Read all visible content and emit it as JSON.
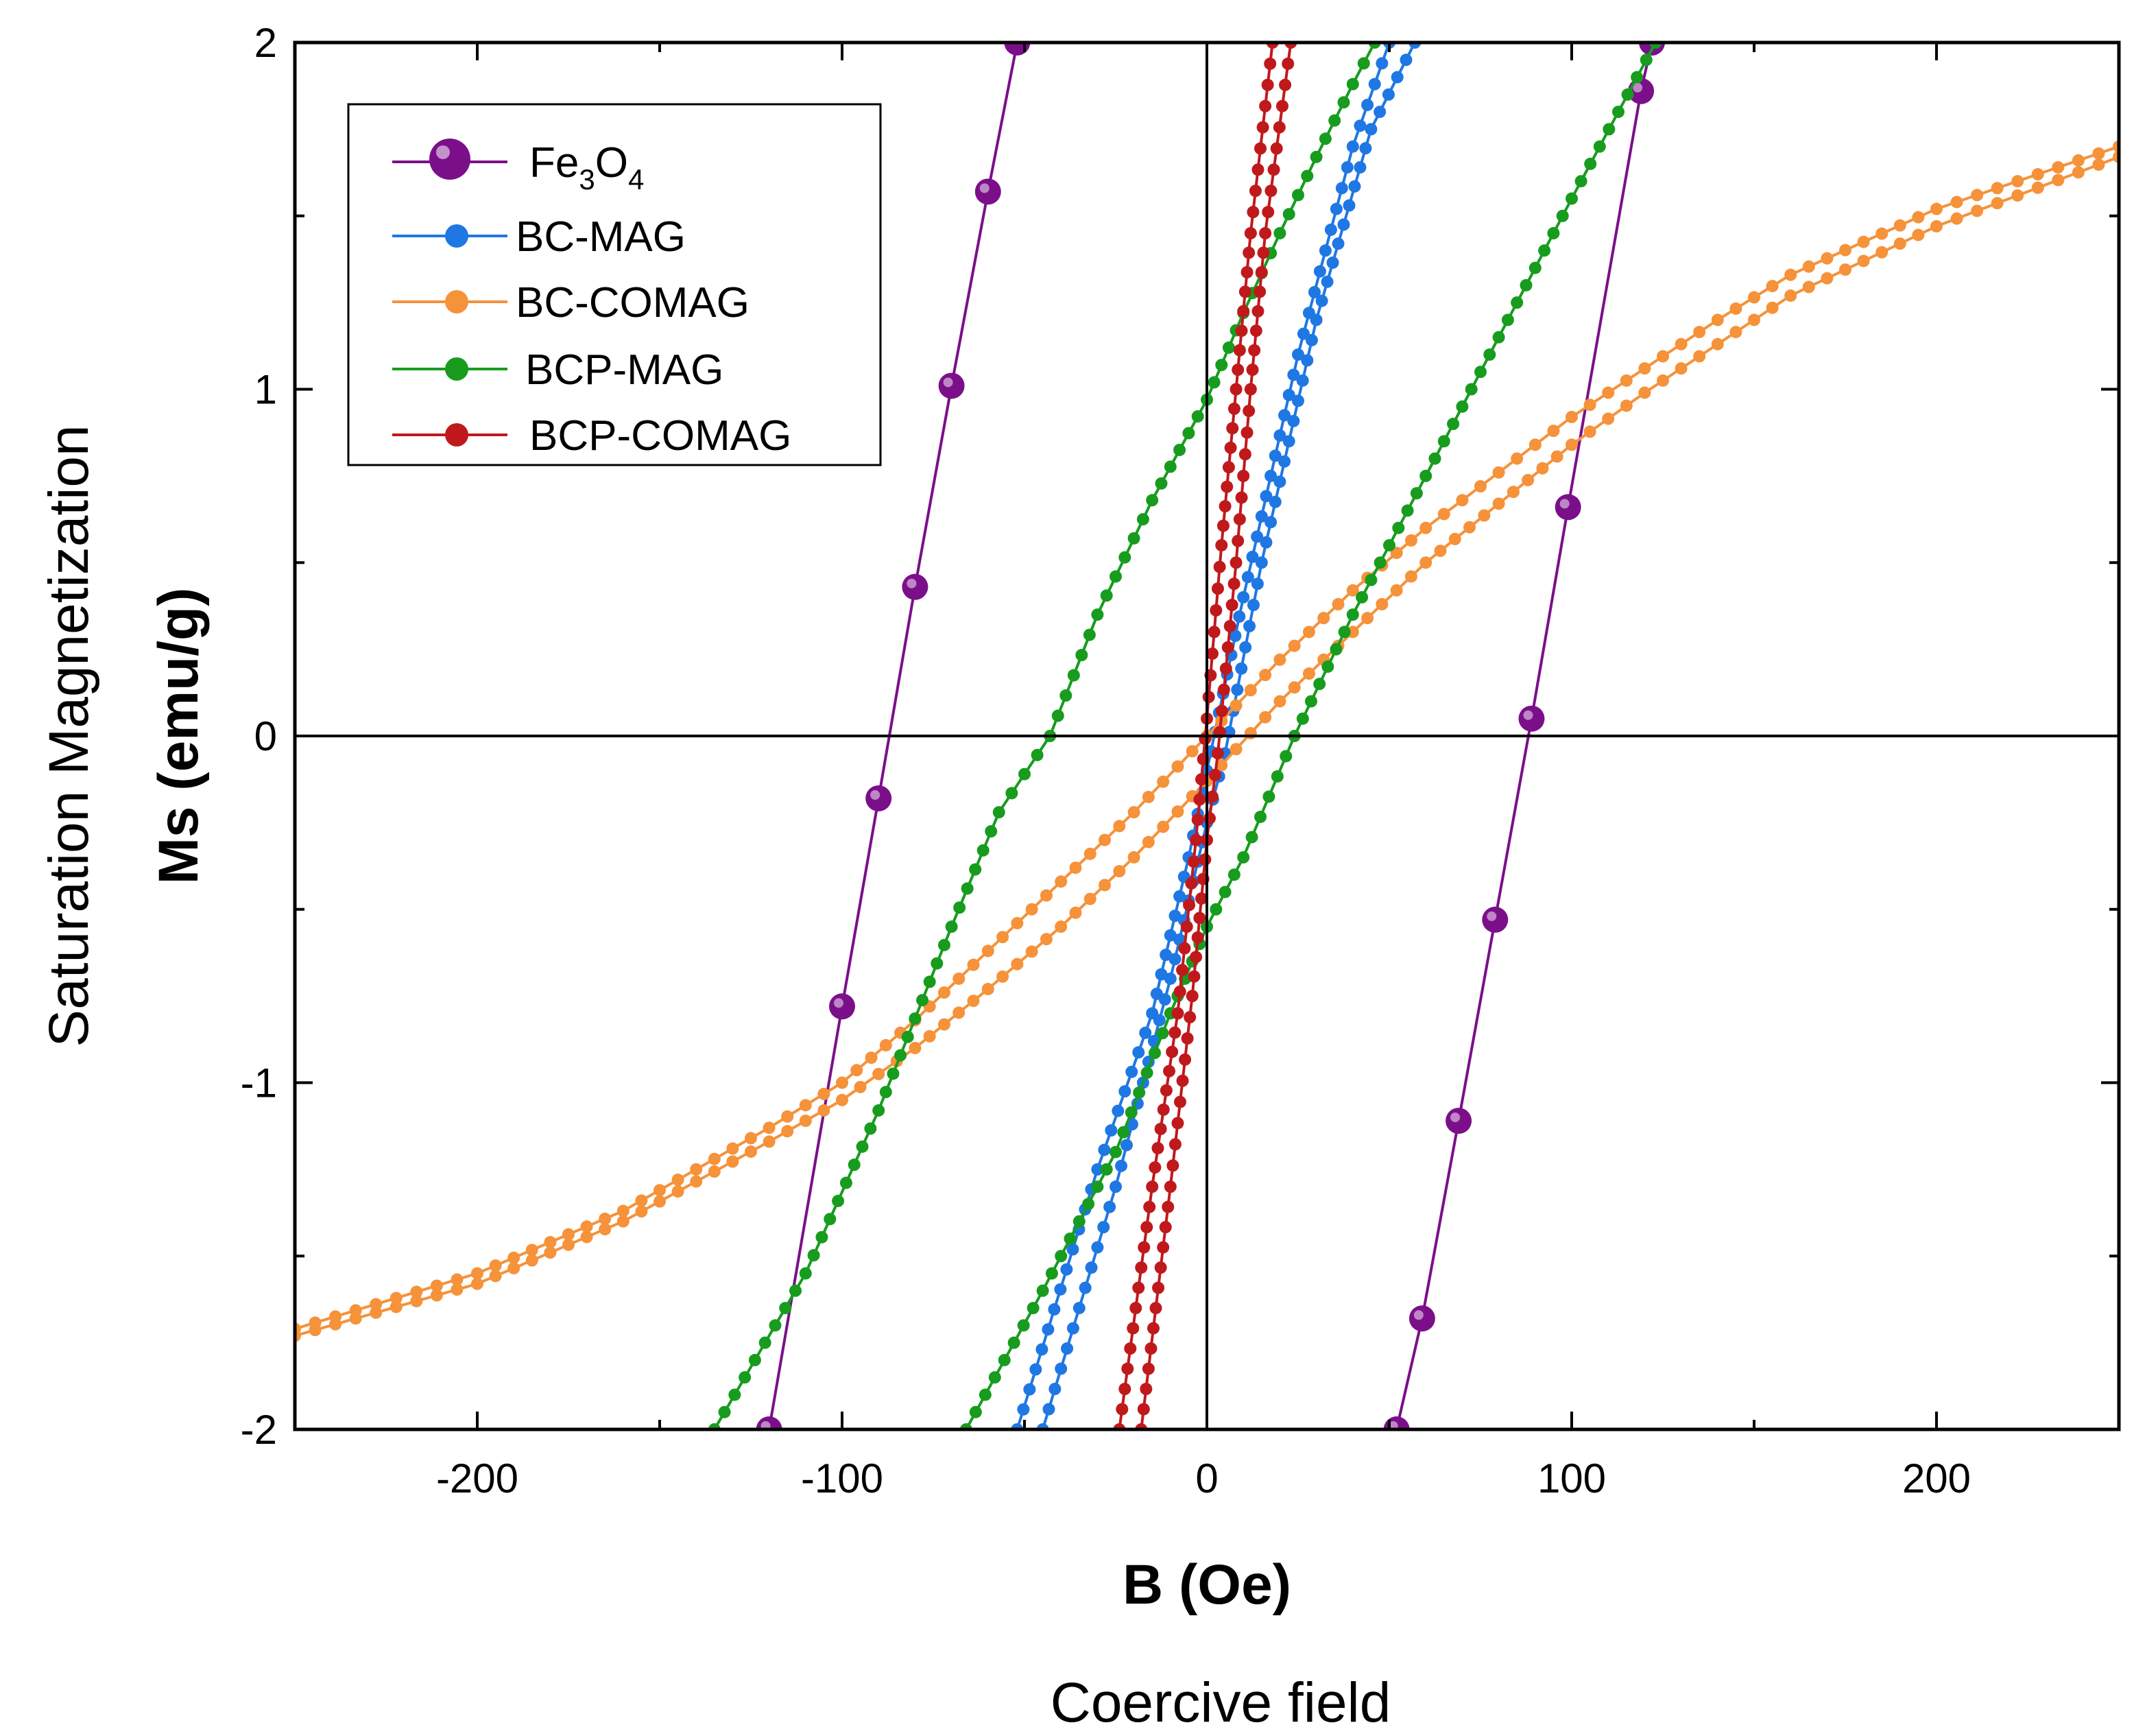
{
  "chart_data": {
    "type": "line",
    "xlabel": "B (Oe)",
    "xlabel_secondary": "Coercive field",
    "ylabel": "Ms (emu/g)",
    "ylabel_secondary": "Saturation Magnetization",
    "xlim": [
      -250,
      250
    ],
    "ylim": [
      -2,
      2
    ],
    "x_ticks": [
      -200,
      -100,
      0,
      100,
      200
    ],
    "x_tick_labels": [
      "-200",
      "-100",
      "0",
      "100",
      "200"
    ],
    "y_ticks": [
      -2,
      -1,
      0,
      1,
      2
    ],
    "y_tick_labels": [
      "-2",
      "-1",
      "0",
      "1",
      "2"
    ],
    "zero_lines": true,
    "legend_position": "top-left",
    "series": [
      {
        "name": "Fe3O4",
        "label_main": "Fe",
        "label_sub1": "3",
        "label_mid": "O",
        "label_sub2": "4",
        "color": "#7B0F8A",
        "marker": "large",
        "branches": [
          [
            [
              -120,
              -2.0
            ],
            [
              -100,
              -0.78
            ],
            [
              -90,
              -0.18
            ],
            [
              -80,
              0.43
            ],
            [
              -70,
              1.01
            ],
            [
              -60,
              1.57
            ],
            [
              -52,
              2.0
            ]
          ],
          [
            [
              52,
              -2.0
            ],
            [
              59,
              -1.68
            ],
            [
              69,
              -1.11
            ],
            [
              79,
              -0.53
            ],
            [
              89,
              0.05
            ],
            [
              99,
              0.66
            ],
            [
              119,
              1.86
            ],
            [
              122,
              2.0
            ]
          ]
        ]
      },
      {
        "name": "BC-MAG",
        "label_main": "BC-MAG",
        "color": "#1F77E4",
        "marker": "small",
        "branches": [
          [
            [
              -52,
              -2.0
            ],
            [
              -30,
              -1.25
            ],
            [
              -15,
              -0.8
            ],
            [
              -5,
              -0.35
            ],
            [
              0,
              -0.1
            ],
            [
              10,
              0.4
            ],
            [
              25,
              1.1
            ],
            [
              40,
              1.7
            ],
            [
              50,
              2.0
            ]
          ],
          [
            [
              -45,
              -2.0
            ],
            [
              -25,
              -1.3
            ],
            [
              -10,
              -0.7
            ],
            [
              0,
              -0.25
            ],
            [
              5,
              -0.05
            ],
            [
              15,
              0.5
            ],
            [
              30,
              1.2
            ],
            [
              45,
              1.75
            ],
            [
              57,
              2.0
            ]
          ]
        ]
      },
      {
        "name": "BC-COMAG",
        "label_main": "BC-COMAG",
        "color": "#F5923A",
        "marker": "small",
        "branches": [
          [
            [
              -250,
              -1.73
            ],
            [
              -200,
              -1.58
            ],
            [
              -160,
              -1.4
            ],
            [
              -120,
              -1.17
            ],
            [
              -100,
              -1.05
            ],
            [
              -80,
              -0.9
            ],
            [
              -60,
              -0.73
            ],
            [
              -40,
              -0.55
            ],
            [
              -20,
              -0.35
            ],
            [
              0,
              -0.13
            ],
            [
              20,
              0.1
            ],
            [
              40,
              0.3
            ],
            [
              60,
              0.5
            ],
            [
              80,
              0.67
            ],
            [
              100,
              0.84
            ],
            [
              120,
              0.99
            ],
            [
              140,
              1.13
            ],
            [
              160,
              1.27
            ],
            [
              200,
              1.47
            ],
            [
              250,
              1.67
            ]
          ],
          [
            [
              -250,
              -1.71
            ],
            [
              -200,
              -1.55
            ],
            [
              -160,
              -1.37
            ],
            [
              -120,
              -1.13
            ],
            [
              -100,
              -1.0
            ],
            [
              -80,
              -0.82
            ],
            [
              -60,
              -0.62
            ],
            [
              -40,
              -0.42
            ],
            [
              -20,
              -0.22
            ],
            [
              0,
              0.0
            ],
            [
              20,
              0.22
            ],
            [
              40,
              0.42
            ],
            [
              60,
              0.6
            ],
            [
              80,
              0.76
            ],
            [
              100,
              0.92
            ],
            [
              120,
              1.06
            ],
            [
              140,
              1.2
            ],
            [
              160,
              1.33
            ],
            [
              200,
              1.52
            ],
            [
              250,
              1.7
            ]
          ]
        ]
      },
      {
        "name": "BCP-MAG",
        "label_main": "BCP-MAG",
        "color": "#179C1E",
        "marker": "small",
        "branches": [
          [
            [
              -135,
              -2.0
            ],
            [
              -110,
              -1.55
            ],
            [
              -90,
              -1.08
            ],
            [
              -70,
              -0.55
            ],
            [
              -57,
              -0.22
            ],
            [
              -43,
              0.0
            ],
            [
              -30,
              0.35
            ],
            [
              -15,
              0.68
            ],
            [
              0,
              0.97
            ],
            [
              10,
              1.22
            ],
            [
              20,
              1.45
            ],
            [
              30,
              1.67
            ],
            [
              40,
              1.88
            ],
            [
              46,
              2.0
            ]
          ],
          [
            [
              -66,
              -2.0
            ],
            [
              -45,
              -1.6
            ],
            [
              -25,
              -1.2
            ],
            [
              -10,
              -0.8
            ],
            [
              0,
              -0.55
            ],
            [
              10,
              -0.35
            ],
            [
              24,
              0.0
            ],
            [
              40,
              0.35
            ],
            [
              60,
              0.75
            ],
            [
              80,
              1.15
            ],
            [
              100,
              1.55
            ],
            [
              123,
              2.0
            ]
          ]
        ]
      },
      {
        "name": "BCP-COMAG",
        "label_main": "BCP-COMAG",
        "color": "#C0191C",
        "marker": "small",
        "branches": [
          [
            [
              -24,
              -2.0
            ],
            [
              -15,
              -1.3
            ],
            [
              -8,
              -0.8
            ],
            [
              -3,
              -0.3
            ],
            [
              0,
              0.05
            ],
            [
              4,
              0.55
            ],
            [
              8,
              1.0
            ],
            [
              12,
              1.45
            ],
            [
              18,
              2.0
            ]
          ],
          [
            [
              -18,
              -2.0
            ],
            [
              -10,
              -1.3
            ],
            [
              -4,
              -0.75
            ],
            [
              0,
              -0.3
            ],
            [
              3,
              -0.05
            ],
            [
              8,
              0.5
            ],
            [
              12,
              1.0
            ],
            [
              16,
              1.45
            ],
            [
              23,
              2.0
            ]
          ]
        ]
      }
    ]
  }
}
